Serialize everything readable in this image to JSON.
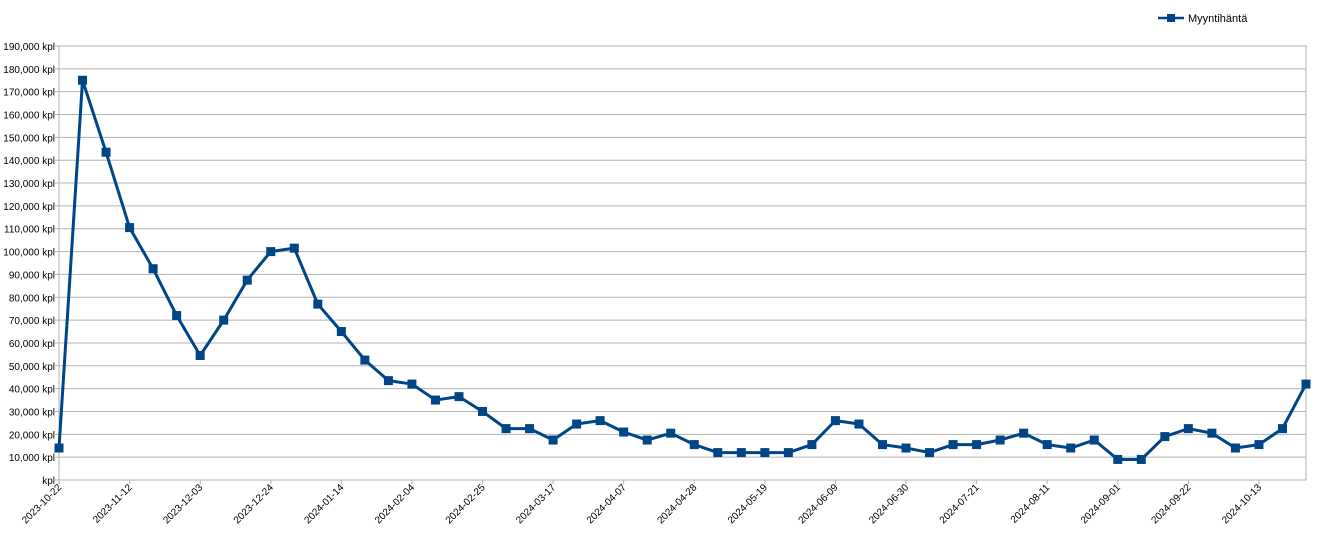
{
  "chart_data": {
    "type": "line",
    "title": "",
    "xlabel": "",
    "ylabel": "",
    "ylim": [
      0,
      190000
    ],
    "y_step": 10000,
    "y_unit": "kpl",
    "grid": true,
    "legend_position": "top-right",
    "x_tick_labels": [
      "2023-10-22",
      "2023-11-12",
      "2023-12-03",
      "2023-12-24",
      "2024-01-14",
      "2024-02-04",
      "2024-02-25",
      "2024-03-17",
      "2024-04-07",
      "2024-04-28",
      "2024-05-19",
      "2024-06-09",
      "2024-06-30",
      "2024-07-21",
      "2024-08-11",
      "2024-09-01",
      "2024-09-22",
      "2024-10-13"
    ],
    "x_tick_every": 3,
    "y_tick_labels": [
      "kpl",
      "10,000 kpl",
      "20,000 kpl",
      "30,000 kpl",
      "40,000 kpl",
      "50,000 kpl",
      "60,000 kpl",
      "70,000 kpl",
      "80,000 kpl",
      "90,000 kpl",
      "100,000 kpl",
      "110,000 kpl",
      "120,000 kpl",
      "130,000 kpl",
      "140,000 kpl",
      "150,000 kpl",
      "160,000 kpl",
      "170,000 kpl",
      "180,000 kpl",
      "190,000 kpl"
    ],
    "series": [
      {
        "name": "Myyntihäntä",
        "color": "#004586",
        "values": [
          14000,
          175000,
          143500,
          110500,
          92500,
          72000,
          54500,
          70000,
          87500,
          100000,
          101500,
          77000,
          65000,
          52500,
          43500,
          42000,
          35000,
          36500,
          30000,
          22500,
          22500,
          17500,
          24500,
          26000,
          21000,
          17500,
          20500,
          15500,
          12000,
          12000,
          12000,
          12000,
          15500,
          26000,
          24500,
          15500,
          14000,
          12000,
          15500,
          15500,
          17500,
          20500,
          15500,
          14000,
          17500,
          9000,
          9000,
          19000,
          22500,
          20500,
          14000,
          15500,
          22500,
          42000
        ]
      }
    ]
  }
}
